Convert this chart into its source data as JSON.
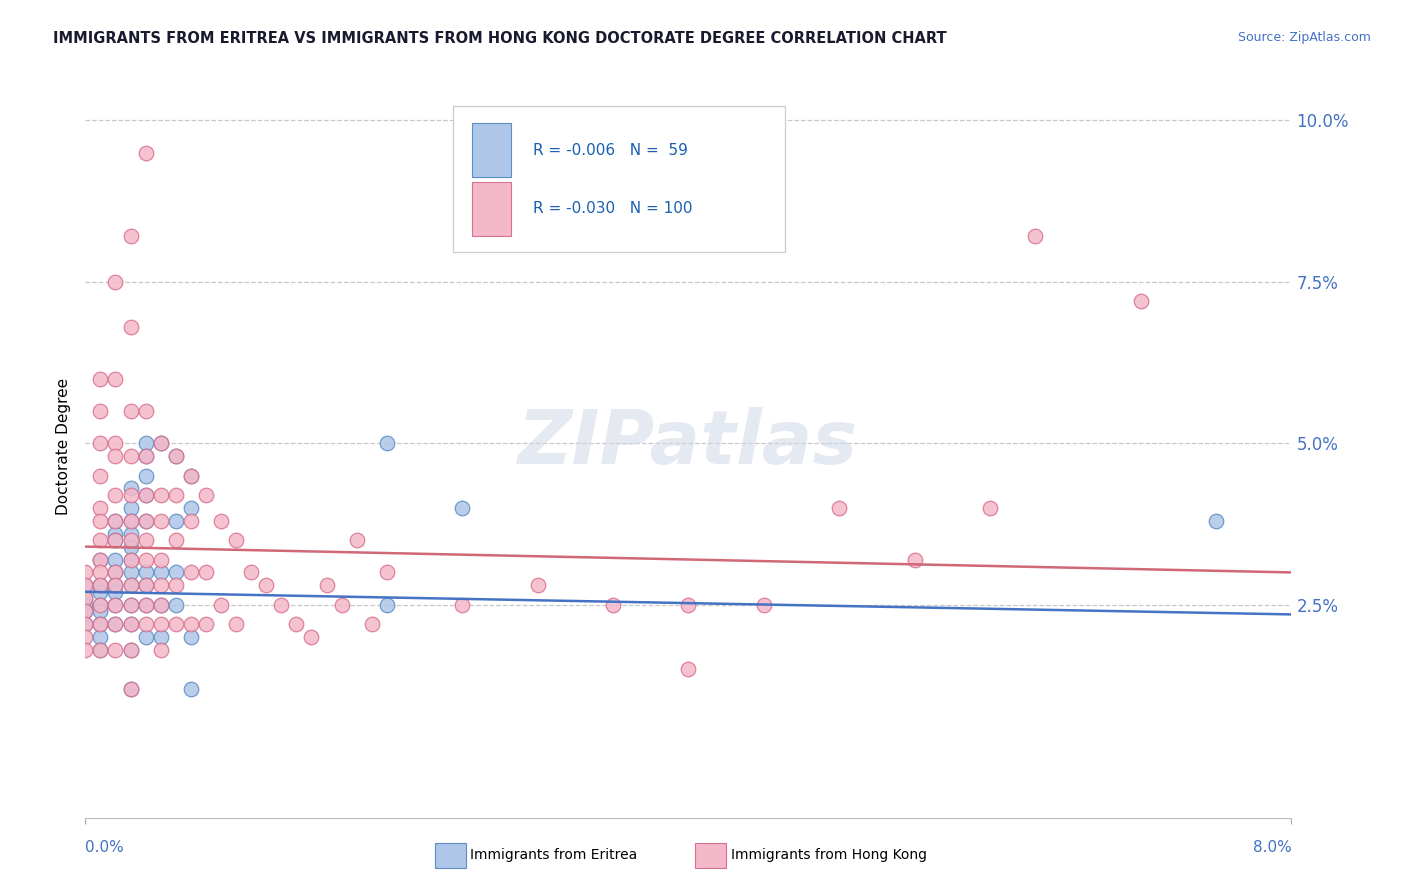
{
  "title": "IMMIGRANTS FROM ERITREA VS IMMIGRANTS FROM HONG KONG DOCTORATE DEGREE CORRELATION CHART",
  "source": "Source: ZipAtlas.com",
  "ylabel": "Doctorate Degree",
  "yticks": [
    "2.5%",
    "5.0%",
    "7.5%",
    "10.0%"
  ],
  "ytick_vals": [
    0.025,
    0.05,
    0.075,
    0.1
  ],
  "xlim": [
    0.0,
    0.08
  ],
  "ylim": [
    -0.008,
    0.108
  ],
  "legend_eritrea_R": "-0.006",
  "legend_eritrea_N": "59",
  "legend_hongkong_R": "-0.030",
  "legend_hongkong_N": "100",
  "color_eritrea": "#aec6e8",
  "color_hongkong": "#f4b8c8",
  "edge_eritrea": "#5b8ec4",
  "edge_hongkong": "#d87090",
  "trendline_eritrea_color": "#4472c4",
  "trendline_hongkong_color": "#d06878",
  "watermark": "ZIPatlas",
  "background_color": "#ffffff",
  "grid_color": "#c8c8c8",
  "eritrea_scatter": [
    [
      0.0,
      0.026
    ],
    [
      0.0,
      0.025
    ],
    [
      0.0,
      0.024
    ],
    [
      0.0,
      0.022
    ],
    [
      0.0,
      0.028
    ],
    [
      0.001,
      0.028
    ],
    [
      0.001,
      0.027
    ],
    [
      0.001,
      0.025
    ],
    [
      0.001,
      0.024
    ],
    [
      0.001,
      0.022
    ],
    [
      0.001,
      0.02
    ],
    [
      0.001,
      0.018
    ],
    [
      0.001,
      0.032
    ],
    [
      0.002,
      0.038
    ],
    [
      0.002,
      0.036
    ],
    [
      0.002,
      0.035
    ],
    [
      0.002,
      0.032
    ],
    [
      0.002,
      0.03
    ],
    [
      0.002,
      0.028
    ],
    [
      0.002,
      0.027
    ],
    [
      0.002,
      0.025
    ],
    [
      0.002,
      0.022
    ],
    [
      0.003,
      0.043
    ],
    [
      0.003,
      0.04
    ],
    [
      0.003,
      0.038
    ],
    [
      0.003,
      0.036
    ],
    [
      0.003,
      0.034
    ],
    [
      0.003,
      0.032
    ],
    [
      0.003,
      0.03
    ],
    [
      0.003,
      0.028
    ],
    [
      0.003,
      0.025
    ],
    [
      0.003,
      0.022
    ],
    [
      0.003,
      0.018
    ],
    [
      0.003,
      0.012
    ],
    [
      0.004,
      0.05
    ],
    [
      0.004,
      0.048
    ],
    [
      0.004,
      0.045
    ],
    [
      0.004,
      0.042
    ],
    [
      0.004,
      0.038
    ],
    [
      0.004,
      0.03
    ],
    [
      0.004,
      0.028
    ],
    [
      0.004,
      0.025
    ],
    [
      0.004,
      0.02
    ],
    [
      0.005,
      0.05
    ],
    [
      0.005,
      0.03
    ],
    [
      0.005,
      0.025
    ],
    [
      0.005,
      0.02
    ],
    [
      0.006,
      0.048
    ],
    [
      0.006,
      0.038
    ],
    [
      0.006,
      0.03
    ],
    [
      0.006,
      0.025
    ],
    [
      0.007,
      0.045
    ],
    [
      0.007,
      0.04
    ],
    [
      0.007,
      0.02
    ],
    [
      0.007,
      0.012
    ],
    [
      0.02,
      0.05
    ],
    [
      0.02,
      0.025
    ],
    [
      0.025,
      0.04
    ],
    [
      0.075,
      0.038
    ]
  ],
  "hongkong_scatter": [
    [
      0.0,
      0.03
    ],
    [
      0.0,
      0.028
    ],
    [
      0.0,
      0.026
    ],
    [
      0.0,
      0.024
    ],
    [
      0.0,
      0.022
    ],
    [
      0.0,
      0.02
    ],
    [
      0.0,
      0.018
    ],
    [
      0.001,
      0.06
    ],
    [
      0.001,
      0.055
    ],
    [
      0.001,
      0.05
    ],
    [
      0.001,
      0.045
    ],
    [
      0.001,
      0.04
    ],
    [
      0.001,
      0.038
    ],
    [
      0.001,
      0.035
    ],
    [
      0.001,
      0.032
    ],
    [
      0.001,
      0.03
    ],
    [
      0.001,
      0.028
    ],
    [
      0.001,
      0.025
    ],
    [
      0.001,
      0.022
    ],
    [
      0.001,
      0.018
    ],
    [
      0.002,
      0.075
    ],
    [
      0.002,
      0.06
    ],
    [
      0.002,
      0.05
    ],
    [
      0.002,
      0.048
    ],
    [
      0.002,
      0.042
    ],
    [
      0.002,
      0.038
    ],
    [
      0.002,
      0.035
    ],
    [
      0.002,
      0.03
    ],
    [
      0.002,
      0.028
    ],
    [
      0.002,
      0.025
    ],
    [
      0.002,
      0.022
    ],
    [
      0.002,
      0.018
    ],
    [
      0.003,
      0.082
    ],
    [
      0.003,
      0.068
    ],
    [
      0.003,
      0.055
    ],
    [
      0.003,
      0.048
    ],
    [
      0.003,
      0.042
    ],
    [
      0.003,
      0.038
    ],
    [
      0.003,
      0.035
    ],
    [
      0.003,
      0.032
    ],
    [
      0.003,
      0.028
    ],
    [
      0.003,
      0.025
    ],
    [
      0.003,
      0.022
    ],
    [
      0.003,
      0.018
    ],
    [
      0.003,
      0.012
    ],
    [
      0.004,
      0.095
    ],
    [
      0.004,
      0.055
    ],
    [
      0.004,
      0.048
    ],
    [
      0.004,
      0.042
    ],
    [
      0.004,
      0.038
    ],
    [
      0.004,
      0.035
    ],
    [
      0.004,
      0.032
    ],
    [
      0.004,
      0.028
    ],
    [
      0.004,
      0.025
    ],
    [
      0.004,
      0.022
    ],
    [
      0.005,
      0.05
    ],
    [
      0.005,
      0.042
    ],
    [
      0.005,
      0.038
    ],
    [
      0.005,
      0.032
    ],
    [
      0.005,
      0.028
    ],
    [
      0.005,
      0.025
    ],
    [
      0.005,
      0.022
    ],
    [
      0.005,
      0.018
    ],
    [
      0.006,
      0.048
    ],
    [
      0.006,
      0.042
    ],
    [
      0.006,
      0.035
    ],
    [
      0.006,
      0.028
    ],
    [
      0.006,
      0.022
    ],
    [
      0.007,
      0.045
    ],
    [
      0.007,
      0.038
    ],
    [
      0.007,
      0.03
    ],
    [
      0.007,
      0.022
    ],
    [
      0.008,
      0.042
    ],
    [
      0.008,
      0.03
    ],
    [
      0.008,
      0.022
    ],
    [
      0.009,
      0.038
    ],
    [
      0.009,
      0.025
    ],
    [
      0.01,
      0.035
    ],
    [
      0.01,
      0.022
    ],
    [
      0.011,
      0.03
    ],
    [
      0.012,
      0.028
    ],
    [
      0.013,
      0.025
    ],
    [
      0.014,
      0.022
    ],
    [
      0.015,
      0.02
    ],
    [
      0.016,
      0.028
    ],
    [
      0.017,
      0.025
    ],
    [
      0.018,
      0.035
    ],
    [
      0.019,
      0.022
    ],
    [
      0.02,
      0.03
    ],
    [
      0.025,
      0.025
    ],
    [
      0.03,
      0.028
    ],
    [
      0.035,
      0.025
    ],
    [
      0.04,
      0.025
    ],
    [
      0.04,
      0.015
    ],
    [
      0.045,
      0.025
    ],
    [
      0.05,
      0.04
    ],
    [
      0.055,
      0.032
    ],
    [
      0.06,
      0.04
    ],
    [
      0.063,
      0.082
    ],
    [
      0.07,
      0.072
    ]
  ],
  "eritrea_trend": [
    0.027,
    0.0235
  ],
  "hongkong_trend": [
    0.034,
    0.03
  ]
}
